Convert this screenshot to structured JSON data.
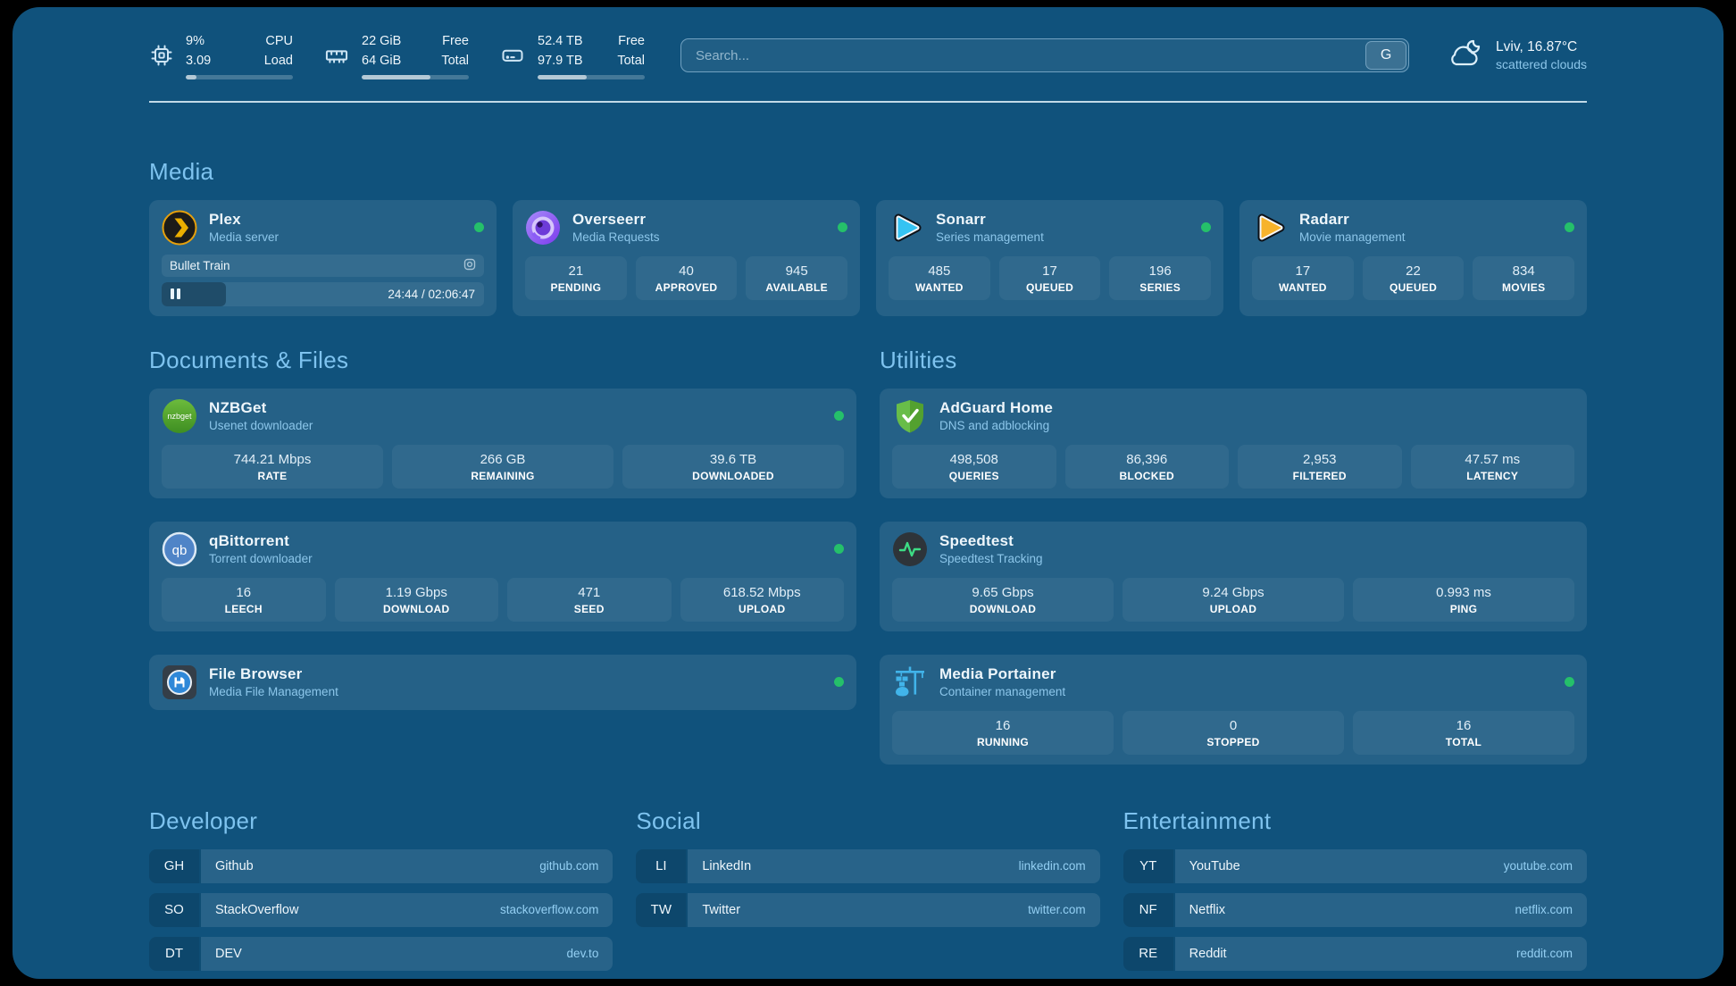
{
  "theme": {
    "canvas": "#10527C",
    "status_green": "#25C06A",
    "heading": "#7EC3EF",
    "subtitle": "#8CC6EA",
    "text": "#EEF6FB",
    "domain": "#93CFF3"
  },
  "icons": {
    "cpu": "chip",
    "memory": "ram-stick",
    "disk": "drive",
    "weather": "cloud-moon",
    "plex": "chevron-circle",
    "overseerr": "eye-circle",
    "sonarr": "play-triangle-cyan",
    "radarr": "play-triangle-orange",
    "nzbget": "green-circle-wordmark",
    "qbittorrent": "qb-circle",
    "filebrowser": "floppy-circle",
    "adguard": "shield-check",
    "speedtest": "pulse-circle",
    "portainer": "crane-containers",
    "plex_session": "target",
    "plex_pause": "pause-bars"
  },
  "topbar": {
    "resources": [
      {
        "value_top": "9%",
        "value_bottom": "3.09",
        "label_top": "CPU",
        "label_bottom": "Load",
        "progress": 10
      },
      {
        "value_top": "22 GiB",
        "value_bottom": "64 GiB",
        "label_top": "Free",
        "label_bottom": "Total",
        "progress": 64
      },
      {
        "value_top": "52.4 TB",
        "value_bottom": "97.9 TB",
        "label_top": "Free",
        "label_bottom": "Total",
        "progress": 46
      }
    ],
    "search": {
      "placeholder": "Search...",
      "provider": "G"
    },
    "weather": {
      "location_temp": "Lviv, 16.87°C",
      "condition": "scattered clouds"
    }
  },
  "media": {
    "title": "Media",
    "cards": [
      {
        "name": "Plex",
        "subtitle": "Media server",
        "player": {
          "title": "Bullet Train",
          "time": "24:44 / 02:06:47",
          "progress": 20
        }
      },
      {
        "name": "Overseerr",
        "subtitle": "Media Requests",
        "stats": [
          {
            "value": "21",
            "label": "PENDING"
          },
          {
            "value": "40",
            "label": "APPROVED"
          },
          {
            "value": "945",
            "label": "AVAILABLE"
          }
        ]
      },
      {
        "name": "Sonarr",
        "subtitle": "Series management",
        "stats": [
          {
            "value": "485",
            "label": "WANTED"
          },
          {
            "value": "17",
            "label": "QUEUED"
          },
          {
            "value": "196",
            "label": "SERIES"
          }
        ]
      },
      {
        "name": "Radarr",
        "subtitle": "Movie management",
        "stats": [
          {
            "value": "17",
            "label": "WANTED"
          },
          {
            "value": "22",
            "label": "QUEUED"
          },
          {
            "value": "834",
            "label": "MOVIES"
          }
        ]
      }
    ]
  },
  "documents": {
    "title": "Documents & Files",
    "cards": [
      {
        "name": "NZBGet",
        "subtitle": "Usenet downloader",
        "icon_text": "nzbget",
        "stats": [
          {
            "value": "744.21 Mbps",
            "label": "RATE"
          },
          {
            "value": "266 GB",
            "label": "REMAINING"
          },
          {
            "value": "39.6 TB",
            "label": "DOWNLOADED"
          }
        ]
      },
      {
        "name": "qBittorrent",
        "subtitle": "Torrent downloader",
        "icon_text": "qb",
        "stats": [
          {
            "value": "16",
            "label": "LEECH"
          },
          {
            "value": "1.19 Gbps",
            "label": "DOWNLOAD"
          },
          {
            "value": "471",
            "label": "SEED"
          },
          {
            "value": "618.52 Mbps",
            "label": "UPLOAD"
          }
        ]
      },
      {
        "name": "File Browser",
        "subtitle": "Media File Management"
      }
    ]
  },
  "utilities": {
    "title": "Utilities",
    "cards": [
      {
        "name": "AdGuard Home",
        "subtitle": "DNS and adblocking",
        "stats": [
          {
            "value": "498,508",
            "label": "QUERIES"
          },
          {
            "value": "86,396",
            "label": "BLOCKED"
          },
          {
            "value": "2,953",
            "label": "FILTERED"
          },
          {
            "value": "47.57 ms",
            "label": "LATENCY"
          }
        ]
      },
      {
        "name": "Speedtest",
        "subtitle": "Speedtest Tracking",
        "stats": [
          {
            "value": "9.65 Gbps",
            "label": "DOWNLOAD"
          },
          {
            "value": "9.24 Gbps",
            "label": "UPLOAD"
          },
          {
            "value": "0.993 ms",
            "label": "PING"
          }
        ]
      },
      {
        "name": "Media Portainer",
        "subtitle": "Container management",
        "stats": [
          {
            "value": "16",
            "label": "RUNNING"
          },
          {
            "value": "0",
            "label": "STOPPED"
          },
          {
            "value": "16",
            "label": "TOTAL"
          }
        ]
      }
    ]
  },
  "bookmarks": [
    {
      "title": "Developer",
      "links": [
        {
          "abbr": "GH",
          "name": "Github",
          "domain": "github.com"
        },
        {
          "abbr": "SO",
          "name": "StackOverflow",
          "domain": "stackoverflow.com"
        },
        {
          "abbr": "DT",
          "name": "DEV",
          "domain": "dev.to"
        }
      ]
    },
    {
      "title": "Social",
      "links": [
        {
          "abbr": "LI",
          "name": "LinkedIn",
          "domain": "linkedin.com"
        },
        {
          "abbr": "TW",
          "name": "Twitter",
          "domain": "twitter.com"
        }
      ]
    },
    {
      "title": "Entertainment",
      "links": [
        {
          "abbr": "YT",
          "name": "YouTube",
          "domain": "youtube.com"
        },
        {
          "abbr": "NF",
          "name": "Netflix",
          "domain": "netflix.com"
        },
        {
          "abbr": "RE",
          "name": "Reddit",
          "domain": "reddit.com"
        }
      ]
    }
  ]
}
